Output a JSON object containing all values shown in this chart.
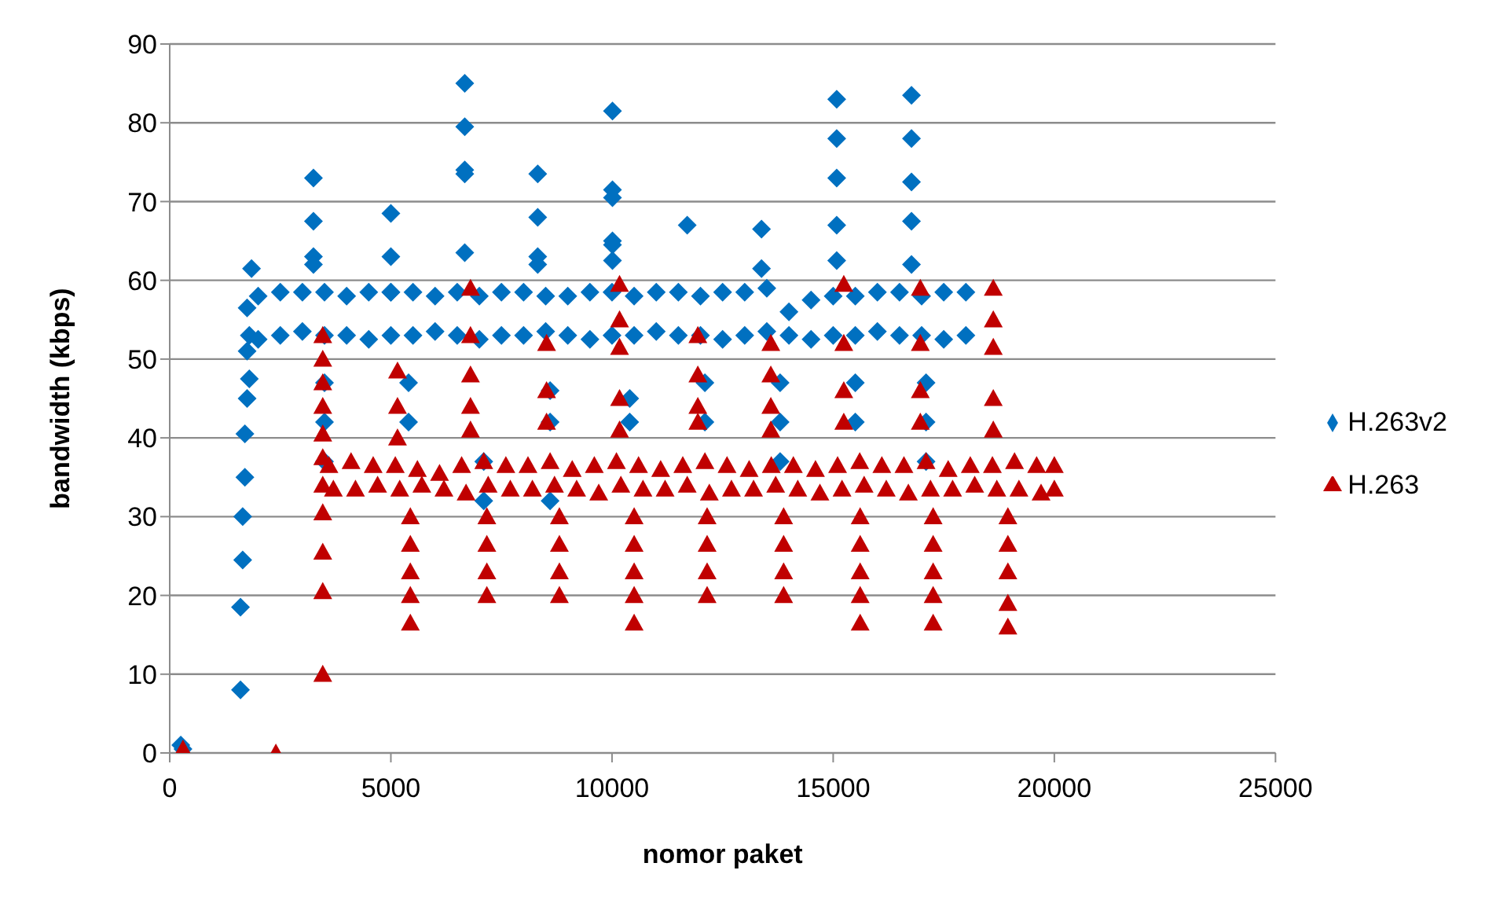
{
  "chart_data": {
    "type": "scatter",
    "xlabel": "nomor paket",
    "ylabel": "bandwidth (kbps)",
    "xlim": [
      0,
      25000
    ],
    "xticks": [
      0,
      5000,
      10000,
      15000,
      20000,
      25000
    ],
    "ylim": [
      0,
      90
    ],
    "yticks": [
      0,
      10,
      20,
      30,
      40,
      50,
      60,
      70,
      80,
      90
    ],
    "grid": "y",
    "legend": "right",
    "series": [
      {
        "name": "H.263v2",
        "color": "#0070c0",
        "marker": "diamond",
        "x": [
          250,
          300,
          1600,
          1600,
          1650,
          1650,
          1700,
          1700,
          1750,
          1800,
          1750,
          1800,
          1750,
          1850,
          2000,
          2500,
          3000,
          3500,
          4000,
          4500,
          5000,
          5500,
          6000,
          6500,
          7000,
          7500,
          8000,
          8500,
          9000,
          9500,
          10000,
          10500,
          11000,
          11500,
          12000,
          12500,
          13000,
          13500,
          14000,
          14500,
          15000,
          15500,
          16000,
          16500,
          17000,
          17500,
          18000,
          2000,
          2500,
          3000,
          3500,
          4000,
          4500,
          5000,
          5500,
          6000,
          6500,
          7000,
          7500,
          8000,
          8500,
          9000,
          9500,
          10000,
          10500,
          11000,
          11500,
          12000,
          12500,
          13000,
          13500,
          14000,
          14500,
          15000,
          15500,
          16000,
          16500,
          17000,
          17500,
          18000,
          3250,
          3250,
          3250,
          3250,
          5000,
          5000,
          5000,
          6670,
          6670,
          6670,
          6670,
          6670,
          8320,
          8320,
          8320,
          8320,
          10010,
          10010,
          10010,
          10010,
          10010,
          10010,
          11700,
          13380,
          13380,
          15080,
          15080,
          15080,
          15080,
          15080,
          16770,
          16770,
          16770,
          16770,
          16770,
          3500,
          3500,
          3500,
          5400,
          5400,
          7100,
          7100,
          8600,
          8600,
          8600,
          10400,
          10400,
          12100,
          12100,
          13800,
          13800,
          13800,
          15500,
          15500,
          17100,
          17100,
          17100
        ],
        "values": [
          1,
          0.5,
          8,
          18.5,
          24.5,
          30,
          35,
          40.5,
          45,
          47.5,
          51,
          53,
          56.5,
          61.5,
          58,
          58.5,
          58.5,
          58.5,
          58,
          58.5,
          58.5,
          58.5,
          58,
          58.5,
          58,
          58.5,
          58.5,
          58,
          58,
          58.5,
          58.5,
          58,
          58.5,
          58.5,
          58,
          58.5,
          58.5,
          59,
          56,
          57.5,
          58,
          58,
          58.5,
          58.5,
          58,
          58.5,
          58.5,
          52.5,
          53,
          53.5,
          53,
          53,
          52.5,
          53,
          53,
          53.5,
          53,
          52.5,
          53,
          53,
          53.5,
          53,
          52.5,
          53,
          53,
          53.5,
          53,
          53,
          52.5,
          53,
          53.5,
          53,
          52.5,
          53,
          53,
          53.5,
          53,
          53,
          52.5,
          53,
          73,
          67.5,
          63,
          62,
          68.5,
          63,
          58.5,
          85,
          79.5,
          74,
          73.5,
          63.5,
          73.5,
          68,
          63,
          62,
          81.5,
          71.5,
          70.5,
          65,
          64.5,
          62.5,
          67,
          66.5,
          61.5,
          83,
          78,
          73,
          67,
          62.5,
          83.5,
          78,
          72.5,
          67.5,
          62,
          47,
          42,
          37,
          47,
          42,
          37,
          32,
          46,
          42,
          32,
          45,
          42,
          47,
          42,
          47,
          42,
          37,
          47,
          42,
          47,
          42,
          37
        ]
      },
      {
        "name": "H.263",
        "color": "#c00000",
        "marker": "triangle",
        "x": [
          300,
          2400,
          3460,
          3460,
          3460,
          3460,
          3460,
          3460,
          3460,
          3460,
          3460,
          3460,
          3460,
          3600,
          4100,
          4600,
          5100,
          5600,
          6100,
          6600,
          7100,
          7600,
          8100,
          8600,
          9100,
          9600,
          10100,
          10600,
          11100,
          11600,
          12100,
          12600,
          13100,
          13600,
          14100,
          14600,
          15100,
          15600,
          16100,
          16600,
          17100,
          17600,
          18100,
          18600,
          19100,
          19600,
          20000,
          3700,
          4200,
          4700,
          5200,
          5700,
          6200,
          6700,
          7200,
          7700,
          8200,
          8700,
          9200,
          9700,
          10200,
          10700,
          11200,
          11700,
          12200,
          12700,
          13200,
          13700,
          14200,
          14700,
          15200,
          15700,
          16200,
          16700,
          17200,
          17700,
          18200,
          18700,
          19200,
          19700,
          20000,
          5150,
          5150,
          5150,
          5440,
          5440,
          5440,
          5440,
          5440,
          6800,
          6800,
          6800,
          6800,
          6800,
          7170,
          7170,
          7170,
          7170,
          8520,
          8520,
          8520,
          8810,
          8810,
          8810,
          8810,
          10170,
          10170,
          10170,
          10170,
          10170,
          10500,
          10500,
          10500,
          10500,
          10500,
          11940,
          11940,
          11940,
          11940,
          12150,
          12150,
          12150,
          12150,
          13590,
          13590,
          13590,
          13590,
          13880,
          13880,
          13880,
          13880,
          15240,
          15240,
          15240,
          15240,
          15610,
          15610,
          15610,
          15610,
          15610,
          16970,
          16970,
          16970,
          16970,
          17260,
          17260,
          17260,
          17260,
          17260,
          18620,
          18620,
          18620,
          18620,
          18620,
          18950,
          18950,
          18950,
          18950,
          18950
        ],
        "values": [
          0.5,
          0,
          10,
          20.5,
          25.5,
          30.5,
          34,
          37.5,
          40.5,
          44,
          47,
          50,
          53,
          36.5,
          37,
          36.5,
          36.5,
          36,
          35.5,
          36.5,
          37,
          36.5,
          36.5,
          37,
          36,
          36.5,
          37,
          36.5,
          36,
          36.5,
          37,
          36.5,
          36,
          36.5,
          36.5,
          36,
          36.5,
          37,
          36.5,
          36.5,
          37,
          36,
          36.5,
          36.5,
          37,
          36.5,
          36.5,
          33.5,
          33.5,
          34,
          33.5,
          34,
          33.5,
          33,
          34,
          33.5,
          33.5,
          34,
          33.5,
          33,
          34,
          33.5,
          33.5,
          34,
          33,
          33.5,
          33.5,
          34,
          33.5,
          33,
          33.5,
          34,
          33.5,
          33,
          33.5,
          33.5,
          34,
          33.5,
          33.5,
          33,
          33.5,
          48.5,
          44,
          40,
          30,
          26.5,
          23,
          20,
          16.5,
          59,
          53,
          48,
          44,
          41,
          30,
          26.5,
          23,
          20,
          52,
          46,
          42,
          30,
          26.5,
          23,
          20,
          59.5,
          55,
          51.5,
          45,
          41,
          30,
          26.5,
          23,
          20,
          16.5,
          53,
          48,
          44,
          42,
          30,
          26.5,
          23,
          20,
          52,
          48,
          44,
          41,
          30,
          26.5,
          23,
          20,
          59.5,
          52,
          46,
          42,
          30,
          26.5,
          23,
          20,
          16.5,
          59,
          52,
          46,
          42,
          30,
          26.5,
          23,
          20,
          16.5,
          59,
          55,
          51.5,
          45,
          41,
          30,
          26.5,
          23,
          19,
          16
        ]
      }
    ]
  }
}
